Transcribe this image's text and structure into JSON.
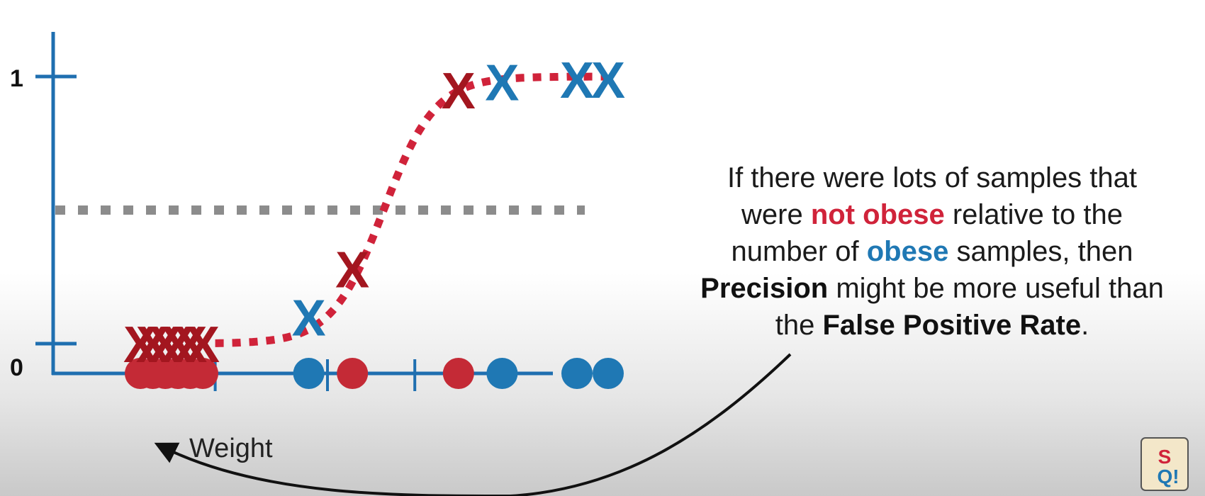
{
  "chart_data": {
    "type": "scatter",
    "xlabel": "Weight",
    "yticks": [
      "0",
      "1"
    ],
    "ylim": [
      0,
      1
    ],
    "threshold": 0.5,
    "colors": {
      "obese": "#1f78b4",
      "not_obese": "#c42a36",
      "curve": "#d0233a",
      "threshold": "#8c8c8c",
      "axis": "#1f6fb0"
    },
    "points": [
      {
        "x": 1.0,
        "y": 0.0,
        "class": "not_obese"
      },
      {
        "x": 1.2,
        "y": 0.0,
        "class": "not_obese"
      },
      {
        "x": 1.4,
        "y": 0.0,
        "class": "not_obese"
      },
      {
        "x": 1.6,
        "y": 0.0,
        "class": "not_obese"
      },
      {
        "x": 1.8,
        "y": 0.0,
        "class": "not_obese"
      },
      {
        "x": 2.0,
        "y": 0.0,
        "class": "not_obese"
      },
      {
        "x": 3.7,
        "y": 0.1,
        "class": "obese"
      },
      {
        "x": 4.4,
        "y": 0.28,
        "class": "not_obese"
      },
      {
        "x": 6.1,
        "y": 0.95,
        "class": "not_obese"
      },
      {
        "x": 6.8,
        "y": 0.98,
        "class": "obese"
      },
      {
        "x": 8.0,
        "y": 0.99,
        "class": "obese"
      },
      {
        "x": 8.5,
        "y": 0.99,
        "class": "obese"
      }
    ]
  },
  "caption": {
    "l1": "If there were lots of samples that",
    "l2a": "were ",
    "l2b": "not obese",
    "l2c": " relative to the",
    "l3a": "number of ",
    "l3b": "obese",
    "l3c": " samples, then",
    "l4a": "Precision",
    "l4b": " might be more useful than",
    "l5a": "the ",
    "l5b": "False Positive Rate",
    "l5c": "."
  },
  "logo_text": "StatQuest"
}
